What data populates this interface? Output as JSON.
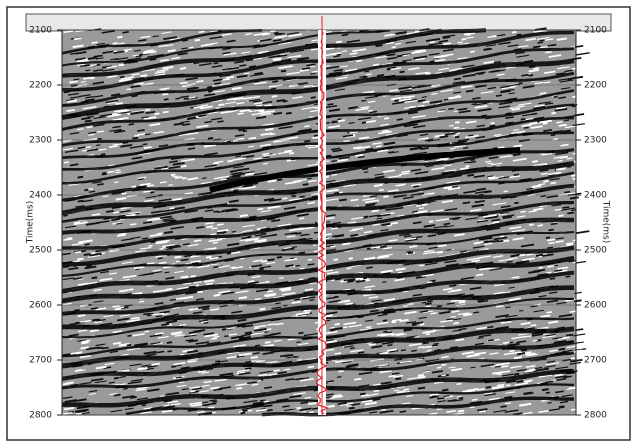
{
  "chart_data": {
    "type": "seismic",
    "ylabel": "Time(ms)",
    "ylim": [
      2100,
      2800
    ],
    "yticks": [
      2100,
      2200,
      2300,
      2400,
      2500,
      2600,
      2700,
      2800
    ],
    "grid": true,
    "well_color": "#e0202a"
  }
}
